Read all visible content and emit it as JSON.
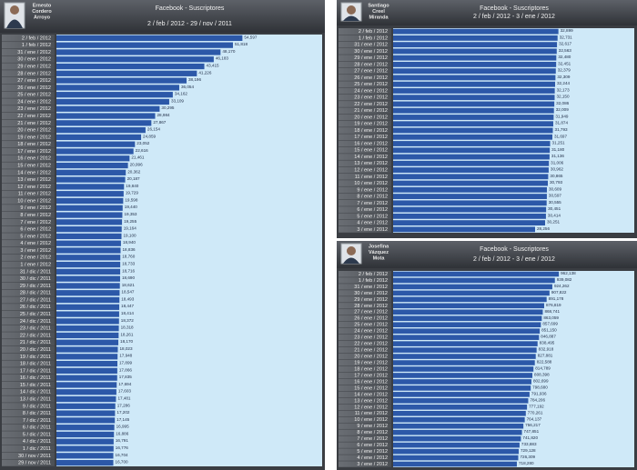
{
  "chart_data": [
    {
      "type": "bar",
      "orientation": "horizontal",
      "name": [
        "Ernesto",
        "Cordero",
        "Arroyo"
      ],
      "title": "Facebook - Suscriptores",
      "subtitle": "2 / feb / 2012  -  29 / nov / 2011",
      "color": "#2c58a8",
      "xlim": [
        0,
        78000
      ],
      "categories": [
        "2 / feb / 2012",
        "1 / feb / 2012",
        "31 / ene / 2012",
        "30 / ene / 2012",
        "29 / ene / 2012",
        "28 / ene / 2012",
        "27 / ene / 2012",
        "26 / ene / 2012",
        "25 / ene / 2012",
        "24 / ene / 2012",
        "23 / ene / 2012",
        "22 / ene / 2012",
        "21 / ene / 2012",
        "20 / ene / 2012",
        "19 / ene / 2012",
        "18 / ene / 2012",
        "17 / ene / 2012",
        "16 / ene / 2012",
        "15 / ene / 2012",
        "14 / ene / 2012",
        "13 / ene / 2012",
        "12 / ene / 2012",
        "11 / ene / 2012",
        "10 / ene / 2012",
        "9 / ene / 2012",
        "8 / ene / 2012",
        "7 / ene / 2012",
        "6 / ene / 2012",
        "5 / ene / 2012",
        "4 / ene / 2012",
        "3 / ene / 2012",
        "2 / ene / 2012",
        "1 / ene / 2012",
        "31 / dic / 2011",
        "30 / dic / 2011",
        "29 / dic / 2011",
        "28 / dic / 2011",
        "27 / dic / 2011",
        "26 / dic / 2011",
        "25 / dic / 2011",
        "24 / dic / 2011",
        "23 / dic / 2011",
        "22 / dic / 2011",
        "21 / dic / 2011",
        "20 / dic / 2011",
        "19 / dic / 2011",
        "18 / dic / 2011",
        "17 / dic / 2011",
        "16 / dic / 2011",
        "15 / dic / 2011",
        "14 / dic / 2011",
        "13 / dic / 2011",
        "9 / dic / 2011",
        "8 / dic / 2011",
        "7 / dic / 2011",
        "6 / dic / 2011",
        "5 / dic / 2011",
        "4 / dic / 2011",
        "1 / dic / 2011",
        "30 / nov / 2011",
        "29 / nov / 2011"
      ],
      "values": [
        54597,
        51818,
        48170,
        46183,
        43415,
        41226,
        38196,
        36054,
        34162,
        33109,
        30295,
        28984,
        27867,
        26154,
        24859,
        23052,
        22616,
        21461,
        20996,
        20362,
        20187,
        19840,
        19729,
        19598,
        19440,
        19353,
        19255,
        19164,
        19100,
        18940,
        18836,
        18760,
        18733,
        18716,
        18690,
        18621,
        18547,
        18493,
        18447,
        18414,
        18372,
        18318,
        18261,
        18170,
        18023,
        17948,
        17899,
        17866,
        17835,
        17694,
        17603,
        17481,
        17286,
        17202,
        17145,
        16995,
        16886,
        16791,
        16776,
        16704,
        16700
      ],
      "value_labels": [
        "54,597",
        "51,818",
        "48,170",
        "46,183",
        "43,415",
        "41,226",
        "38,196",
        "36,054",
        "34,162",
        "33,109",
        "30,295",
        "28,984",
        "27,867",
        "26,154",
        "24,859",
        "23,052",
        "22,616",
        "21,461",
        "20,996",
        "20,362",
        "20,187",
        "19,840",
        "19,729",
        "19,598",
        "19,440",
        "19,353",
        "19,255",
        "19,164",
        "19,100",
        "18,940",
        "18,836",
        "18,760",
        "18,733",
        "18,716",
        "18,690",
        "18,621",
        "18,547",
        "18,493",
        "18,447",
        "18,414",
        "18,372",
        "18,318",
        "18,261",
        "18,170",
        "18,023",
        "17,948",
        "17,899",
        "17,866",
        "17,835",
        "17,694",
        "17,603",
        "17,481",
        "17,286",
        "17,202",
        "17,145",
        "16,995",
        "16,886",
        "16,791",
        "16,776",
        "16,704",
        "16,700"
      ]
    },
    {
      "type": "bar",
      "orientation": "horizontal",
      "name": [
        "Santiago",
        "Creel",
        "Miranda"
      ],
      "title": "Facebook - Suscriptores",
      "subtitle": "2 / feb / 2012  -  3 / ene / 2012",
      "color": "#2c58a8",
      "xlim": [
        0,
        48000
      ],
      "categories": [
        "2 / feb / 2012",
        "1 / feb / 2012",
        "31 / ene / 2012",
        "30 / ene / 2012",
        "29 / ene / 2012",
        "28 / ene / 2012",
        "27 / ene / 2012",
        "26 / ene / 2012",
        "25 / ene / 2012",
        "24 / ene / 2012",
        "23 / ene / 2012",
        "22 / ene / 2012",
        "21 / ene / 2012",
        "20 / ene / 2012",
        "19 / ene / 2012",
        "18 / ene / 2012",
        "17 / ene / 2012",
        "16 / ene / 2012",
        "15 / ene / 2012",
        "14 / ene / 2012",
        "13 / ene / 2012",
        "12 / ene / 2012",
        "11 / ene / 2012",
        "10 / ene / 2012",
        "9 / ene / 2012",
        "8 / ene / 2012",
        "7 / ene / 2012",
        "6 / ene / 2012",
        "5 / ene / 2012",
        "4 / ene / 2012",
        "3 / ene / 2012"
      ],
      "values": [
        32899,
        32731,
        32617,
        32563,
        32480,
        32451,
        32379,
        32309,
        32244,
        32173,
        32150,
        32086,
        32009,
        31949,
        31874,
        31793,
        31697,
        31251,
        31180,
        31136,
        31006,
        30962,
        30865,
        30793,
        30609,
        30597,
        30555,
        30451,
        30414,
        30251,
        28256
      ],
      "value_labels": [
        "32,899",
        "32,731",
        "32,617",
        "32,563",
        "32,480",
        "32,451",
        "32,379",
        "32,309",
        "32,244",
        "32,173",
        "32,150",
        "32,086",
        "32,009",
        "31,949",
        "31,874",
        "31,793",
        "31,697",
        "31,251",
        "31,180",
        "31,136",
        "31,006",
        "30,962",
        "30,865",
        "30,793",
        "30,609",
        "30,597",
        "30,555",
        "30,451",
        "30,414",
        "30,251",
        "28,256"
      ]
    },
    {
      "type": "bar",
      "orientation": "horizontal",
      "name": [
        "Josefina",
        "Vázquez",
        "Mota"
      ],
      "title": "Facebook - Suscriptores",
      "subtitle": "2 / feb / 2012  -  3 / ene / 2012",
      "color": "#2c58a8",
      "xlim": [
        0,
        1400000
      ],
      "categories": [
        "2 / feb / 2012",
        "1 / feb / 2012",
        "31 / ene / 2012",
        "30 / ene / 2012",
        "29 / ene / 2012",
        "28 / ene / 2012",
        "27 / ene / 2012",
        "26 / ene / 2012",
        "25 / ene / 2012",
        "24 / ene / 2012",
        "23 / ene / 2012",
        "22 / ene / 2012",
        "21 / ene / 2012",
        "20 / ene / 2012",
        "19 / ene / 2012",
        "18 / ene / 2012",
        "17 / ene / 2012",
        "16 / ene / 2012",
        "15 / ene / 2012",
        "14 / ene / 2012",
        "13 / ene / 2012",
        "12 / ene / 2012",
        "11 / ene / 2012",
        "10 / ene / 2012",
        "9 / ene / 2012",
        "8 / ene / 2012",
        "7 / ene / 2012",
        "6 / ene / 2012",
        "5 / ene / 2012",
        "4 / ene / 2012",
        "3 / ene / 2012"
      ],
      "values": [
        962138,
        939082,
        924262,
        907822,
        891178,
        876819,
        868741,
        863059,
        857699,
        851150,
        846887,
        838495,
        832918,
        827881,
        822588,
        814789,
        808398,
        802699,
        798680,
        791936,
        784206,
        777192,
        770261,
        764137,
        756217,
        747851,
        741820,
        733883,
        729128,
        726309,
        718280
      ],
      "value_labels": [
        "962,138",
        "939,082",
        "924,262",
        "907,822",
        "891,178",
        "876,819",
        "868,741",
        "863,059",
        "857,699",
        "851,150",
        "846,887",
        "838,495",
        "832,918",
        "827,881",
        "822,588",
        "814,789",
        "808,398",
        "802,699",
        "798,680",
        "791,936",
        "784,206",
        "777,192",
        "770,261",
        "764,137",
        "756,217",
        "747,851",
        "741,820",
        "733,883",
        "729,128",
        "726,309",
        "718,280"
      ]
    }
  ]
}
